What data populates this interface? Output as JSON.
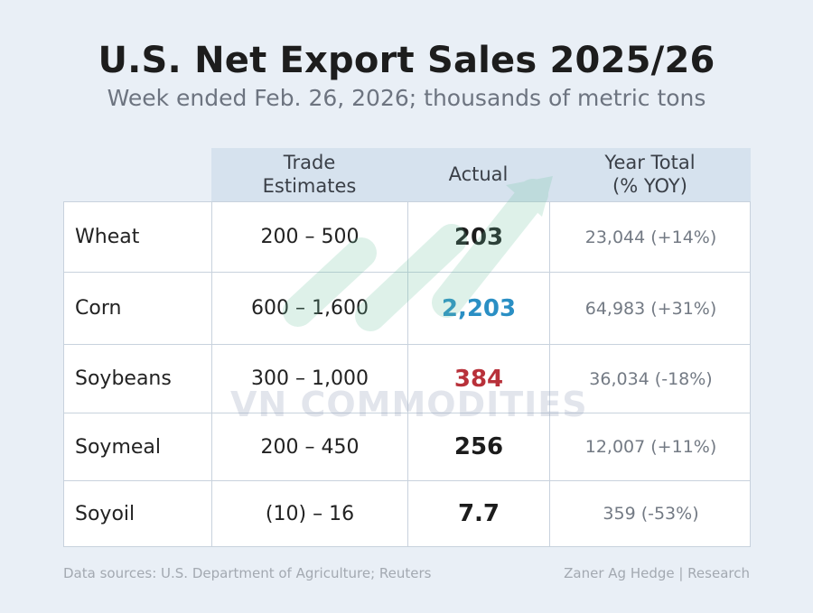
{
  "title": "U.S. Net Export Sales 2025/26",
  "subtitle": "Week ended Feb. 26, 2026; thousands of metric tons",
  "columns": {
    "estimates": [
      "Trade",
      "Estimates"
    ],
    "actual": "Actual",
    "year_total": [
      "Year Total",
      "(% YOY)"
    ]
  },
  "rows": [
    {
      "name": "Wheat",
      "estimates": "200 – 500",
      "actual": "203",
      "actual_color": "#1c1c1c",
      "year_total": "23,044 (+14%)"
    },
    {
      "name": "Corn",
      "estimates": "600 – 1,600",
      "actual": "2,203",
      "actual_color": "#2a8fc4",
      "year_total": "64,983 (+31%)"
    },
    {
      "name": "Soybeans",
      "estimates": "300 – 1,000",
      "actual": "384",
      "actual_color": "#b8313a",
      "year_total": "36,034 (-18%)"
    },
    {
      "name": "Soymeal",
      "estimates": "200 – 450",
      "actual": "256",
      "actual_color": "#1c1c1c",
      "year_total": "12,007 (+11%)"
    },
    {
      "name": "Soyoil",
      "estimates": "(10) – 16",
      "actual": "7.7",
      "actual_color": "#1c1c1c",
      "year_total": "359 (-53%)"
    }
  ],
  "watermark": "VN COMMODITIES",
  "footer": {
    "sources": "Data sources: U.S. Department of Agriculture; Reuters",
    "credit": "Zaner Ag Hedge | Research"
  }
}
